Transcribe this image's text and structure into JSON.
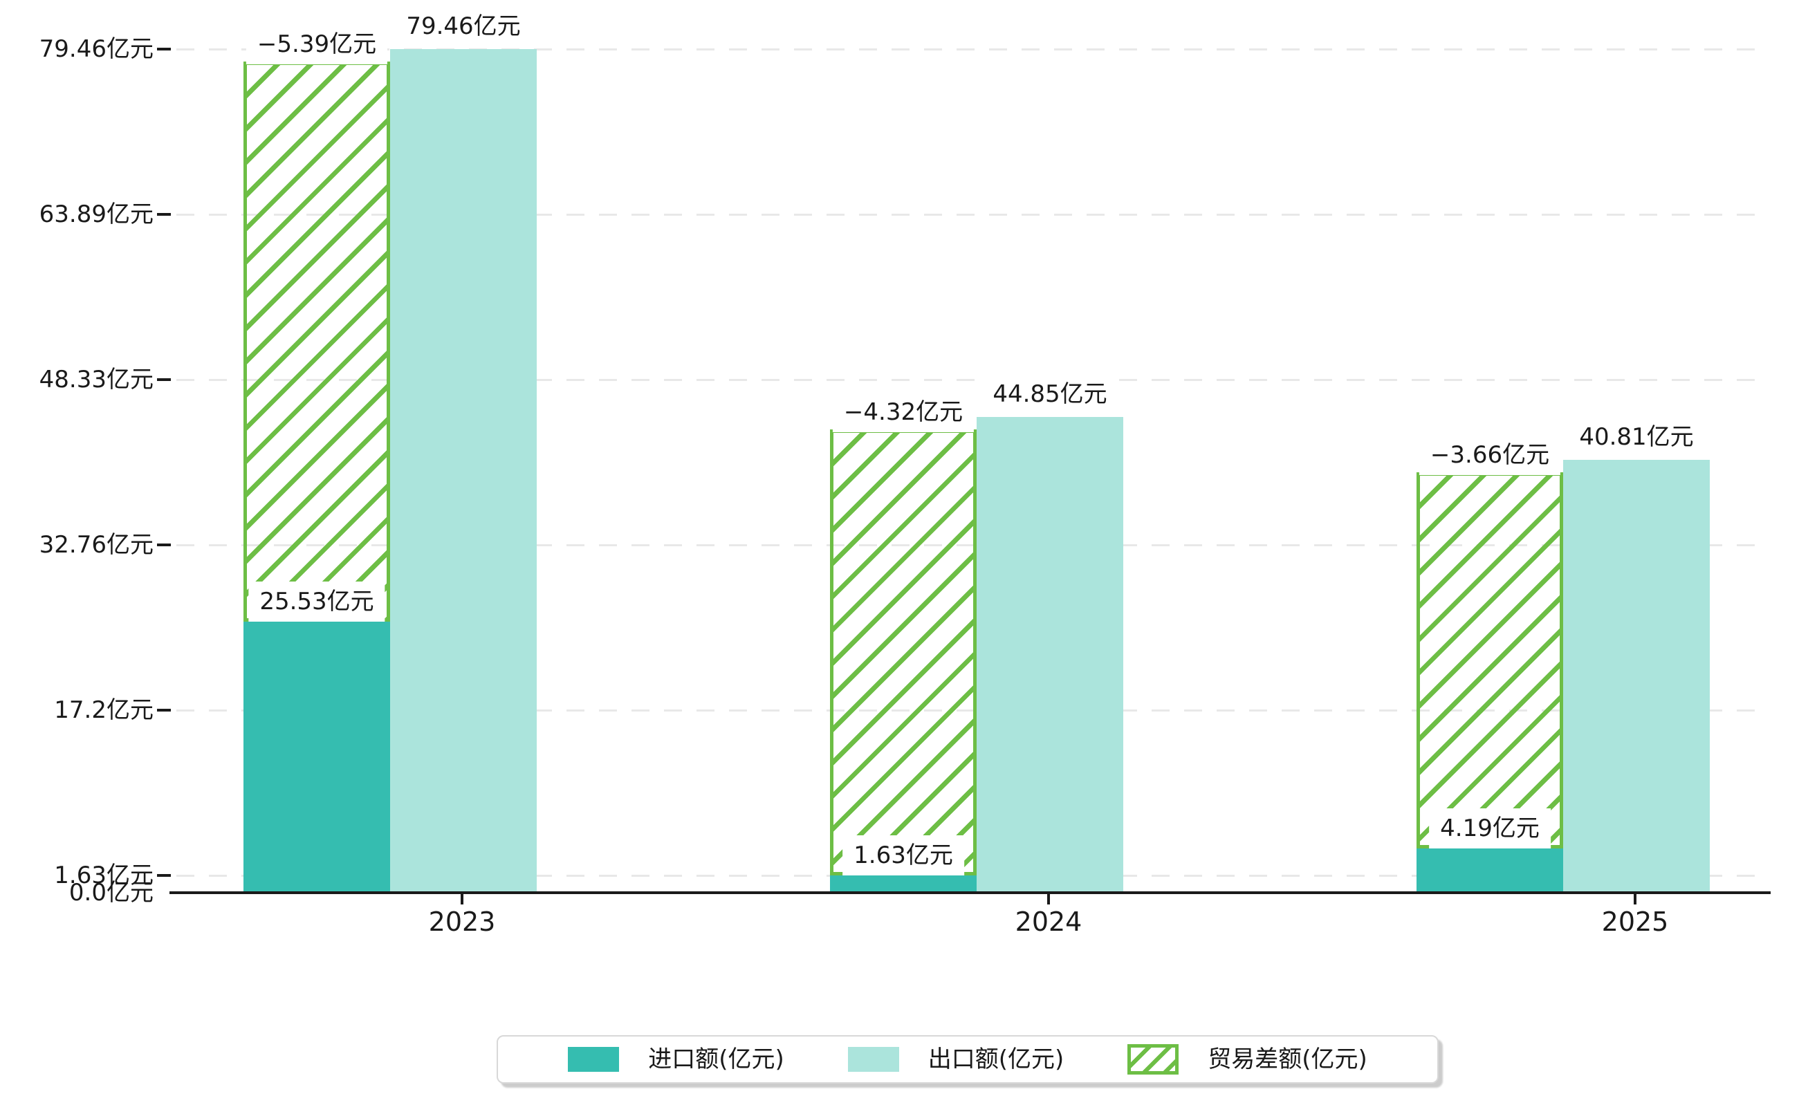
{
  "chart_data": {
    "type": "bar",
    "categories": [
      "2023",
      "2024",
      "2025"
    ],
    "unit": "亿元",
    "series": [
      {
        "name": "进口额(亿元)",
        "style": "solid",
        "color": "#35bdb0",
        "values": [
          25.53,
          1.63,
          4.19
        ],
        "point_labels": [
          "25.53亿元",
          "1.63亿元",
          "4.19亿元"
        ]
      },
      {
        "name": "出口额(亿元)",
        "style": "solid",
        "color": "#abe4dc",
        "values": [
          79.46,
          44.85,
          40.81
        ],
        "point_labels": [
          "79.46亿元",
          "44.85亿元",
          "40.81亿元"
        ]
      },
      {
        "name": "贸易差额(亿元)",
        "style": "hatched",
        "color": "#6dbe45",
        "values": [
          -5.39,
          -4.32,
          -3.66
        ],
        "point_labels": [
          "−5.39亿元",
          "−4.32亿元",
          "−3.66亿元"
        ],
        "drawn_as": "floating hatched bar from import-bar top to export-bar top, over the import column"
      }
    ],
    "yticks": [
      {
        "value": 0,
        "label": "0.0亿元"
      },
      {
        "value": 1.63,
        "label": "1.63亿元"
      },
      {
        "value": 17.2,
        "label": "17.2亿元"
      },
      {
        "value": 32.76,
        "label": "32.76亿元"
      },
      {
        "value": 48.33,
        "label": "48.33亿元"
      },
      {
        "value": 63.89,
        "label": "63.89亿元"
      },
      {
        "value": 79.46,
        "label": "79.46亿元"
      }
    ],
    "ylim": [
      0,
      79.46
    ],
    "grid": "dashed horizontal gridlines",
    "legend_position": "bottom-center"
  },
  "colors": {
    "import_bar": "#35bdb0",
    "export_bar": "#abe4dc",
    "balance_hatch": "#6dbe45",
    "gridline": "#e8e8e8",
    "axis": "#1a1a1a",
    "legend_border": "#d8d8d8",
    "background": "#ffffff",
    "text": "#1a1a1a"
  }
}
